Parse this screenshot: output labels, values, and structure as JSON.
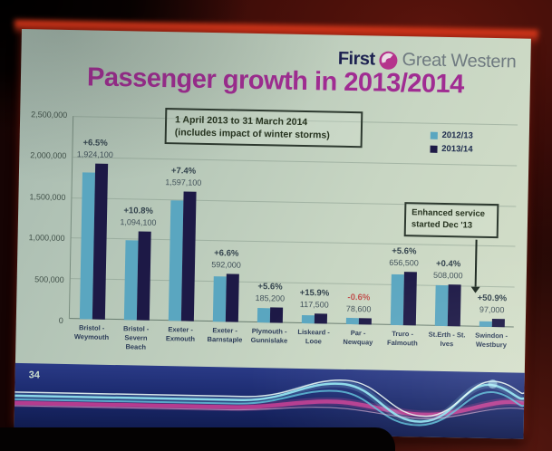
{
  "slide": {
    "page_number": "34",
    "title": "Passenger growth in 2013/2014",
    "logo": {
      "first": "First",
      "rest": "Great Western"
    }
  },
  "colors": {
    "title": "#a02c92",
    "series_2012_13": "#5aa6c0",
    "series_2013_14": "#1d1946",
    "negative_label": "#c0504d",
    "footer_band": "#1b2a6e",
    "footer_wave_cyan": "#8fe0ee",
    "footer_wave_pink": "#c23e92"
  },
  "chart_data": {
    "type": "bar",
    "title": "Passenger growth in 2013/2014",
    "xlabel": "",
    "ylabel": "",
    "ylim": [
      0,
      2500000
    ],
    "grid": true,
    "legend_position": "top-right",
    "y_ticks": [
      "2,500,000",
      "2,000,000",
      "1,500,000",
      "1,000,000",
      "500,000",
      "0"
    ],
    "categories": [
      "Bristol - Weymouth",
      "Bristol - Severn Beach",
      "Exeter - Exmouth",
      "Exeter - Barnstaple",
      "Plymouth - Gunnislake",
      "Liskeard - Looe",
      "Par - Newquay",
      "Truro - Falmouth",
      "St.Erth - St. Ives",
      "Swindon - Westbury"
    ],
    "series": [
      {
        "name": "2012/13",
        "color": "#5aa6c0",
        "values_estimated_from_bars": true,
        "values": [
          1806700,
          987500,
          1487100,
          555300,
          175400,
          101400,
          79100,
          621700,
          506000,
          64300
        ]
      },
      {
        "name": "2013/14",
        "color": "#1d1946",
        "values": [
          1924100,
          1094100,
          1597100,
          592000,
          185200,
          117500,
          78600,
          656500,
          508000,
          97000
        ]
      }
    ],
    "growth_labels": [
      "+6.5%",
      "+10.8%",
      "+7.4%",
      "+6.6%",
      "+5.6%",
      "+15.9%",
      "-0.6%",
      "+5.6%",
      "+0.4%",
      "+50.9%"
    ],
    "value_labels": [
      "1,924,100",
      "1,094,100",
      "1,597,100",
      "592,000",
      "185,200",
      "117,500",
      "78,600",
      "656,500",
      "508,000",
      "97,000"
    ],
    "annotations": {
      "period_box": {
        "line1": "1 April 2013 to 31 March 2014",
        "line2": "(includes impact of winter storms)"
      },
      "callout_box": {
        "line1": "Enhanced service",
        "line2": "started Dec '13",
        "points_to": "Swindon - Westbury"
      }
    }
  }
}
